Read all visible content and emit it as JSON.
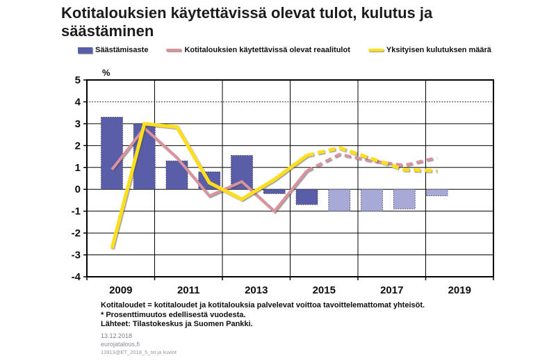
{
  "title": "Kotitalouksien käytettävissä olevat tulot, kulutus ja säästäminen",
  "legend": [
    {
      "label": "Säästämisaste",
      "swatch": "bar",
      "color": "#5A5EA8"
    },
    {
      "label": "Kotitalouksien käytettävissä olevat reaalitulot",
      "swatch": "line",
      "color": "#D9939E"
    },
    {
      "label": "Yksityisen kulutuksen määrä",
      "swatch": "line",
      "color": "#FFDF1E"
    }
  ],
  "chart_data": {
    "type": "bar",
    "subtype": "bar-and-line combo, dashed/light segments are forecast",
    "ylabel": "%",
    "ylim": [
      -4,
      5
    ],
    "ytick_labels": [
      "5",
      "4",
      "3",
      "2",
      "1",
      "0",
      "-1",
      "-2",
      "-3",
      "-4"
    ],
    "grid": true,
    "categories": [
      2009,
      2010,
      2011,
      2012,
      2013,
      2014,
      2015,
      2016,
      2017,
      2018,
      2019
    ],
    "xtick_labels": [
      "2009",
      "2011",
      "2013",
      "2015",
      "2017",
      "2019"
    ],
    "forecast_from": 2016,
    "series": [
      {
        "name": "Säästämisaste",
        "type": "bar",
        "color": "#5A5EA8",
        "forecast_color": "#A7AAD7",
        "values": [
          3.3,
          3.0,
          1.3,
          0.8,
          1.55,
          -0.2,
          -0.7,
          -1.0,
          -1.0,
          -0.9,
          -0.3
        ]
      },
      {
        "name": "Kotitalouksien käytettävissä olevat reaalitulot",
        "type": "line",
        "color": "#D9939E",
        "dashed_from": 2015,
        "values": [
          0.9,
          2.8,
          1.45,
          -0.3,
          0.35,
          -1.0,
          0.85,
          1.6,
          1.3,
          1.1,
          1.45
        ]
      },
      {
        "name": "Yksityisen kulutuksen määrä",
        "type": "line",
        "color": "#FFDF1E",
        "dashed_from": 2015,
        "values": [
          -2.7,
          3.0,
          2.85,
          0.3,
          -0.45,
          0.45,
          1.55,
          1.9,
          1.4,
          0.9,
          0.85
        ]
      }
    ]
  },
  "footnotes": {
    "line1": "Kotitaloudet = kotitaloudet ja kotitalouksia palvelevat voittoa tavoittelemattomat yhteisöt.",
    "line2": "* Prosenttimuutos edellisestä vuodesta.",
    "line3": "Lähteet: Tilastokeskus ja Suomen Pankki.",
    "date": "13.12.2018",
    "site": "eurojatalous.fi",
    "ref": "13913@ET_2018_5_txt ja kuviot"
  }
}
